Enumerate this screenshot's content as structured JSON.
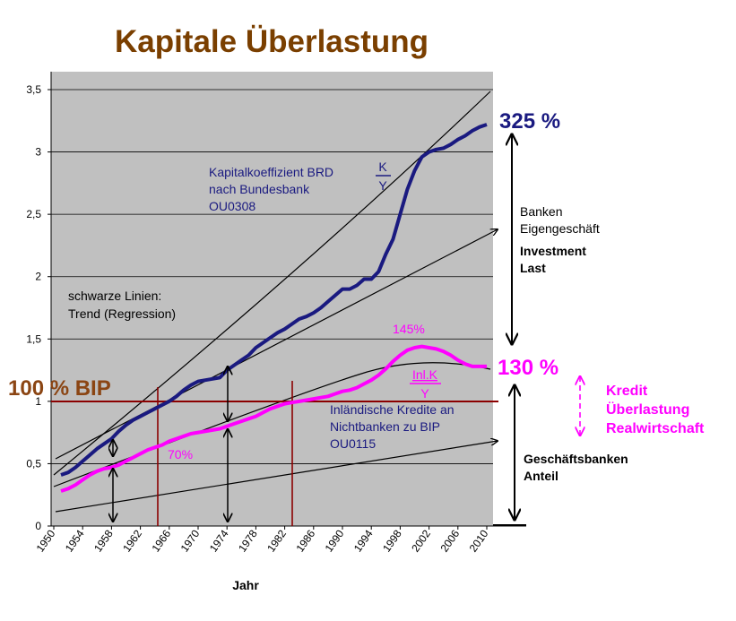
{
  "title": "Kapitale Überlastung",
  "xlabel": "Jahr",
  "colors": {
    "plot_bg": "#c0c0c0",
    "title": "#7a3f00",
    "navy": "#1a1a80",
    "magenta": "#ff00ff",
    "darkred": "#8b0000",
    "trend": "#000000"
  },
  "labels": {
    "k_series_line1": "Kapitalkoeffizient BRD",
    "k_series_line2": "nach Bundesbank",
    "k_series_line3": "OU0308",
    "k_frac_num": "K",
    "k_frac_den": "Y",
    "trend_line1": "schwarze Linien:",
    "trend_line2": "Trend (Regression)",
    "credit_line1": "Inländische Kredite an",
    "credit_line2": "Nichtbanken zu BIP",
    "credit_line3": "OU0115",
    "credit_frac_num": "Inl.K",
    "credit_frac_den": "Y",
    "pct_70": "70%",
    "pct_145": "145%",
    "pct_325": "325 %",
    "pct_130": "130 %",
    "bip_100": "100 % BIP",
    "banken_1": "Banken",
    "banken_2": "Eigengeschäft",
    "investment_1": "Investment",
    "investment_2": "Last",
    "geschaeft_1": "Geschäftsbanken",
    "geschaeft_2": "Anteil",
    "kredit_1": "Kredit",
    "kredit_2": "Überlastung",
    "kredit_3": "Realwirtschaft"
  },
  "chart_data": {
    "type": "line",
    "title": "Kapitale Überlastung",
    "xlabel": "Jahr",
    "ylabel": "",
    "xlim": [
      1950,
      2010
    ],
    "ylim": [
      0,
      3.5
    ],
    "grid": true,
    "y_ticks": [
      0,
      0.5,
      1,
      1.5,
      2,
      2.5,
      3,
      3.5
    ],
    "y_tick_labels": [
      "0",
      "0,5",
      "1",
      "1,5",
      "2",
      "2,5",
      "3",
      "3,5"
    ],
    "x_ticks": [
      1950,
      1954,
      1958,
      1962,
      1966,
      1970,
      1974,
      1978,
      1982,
      1986,
      1990,
      1994,
      1998,
      2002,
      2006,
      2010
    ],
    "x_tick_labels": [
      "1950",
      "1954",
      "1958",
      "1962",
      "1966",
      "1970",
      "1974",
      "1978",
      "1982",
      "1986",
      "1990",
      "1994",
      "1998",
      "2002",
      "2006",
      "2010"
    ],
    "series": [
      {
        "name": "Kapitalkoeffizient BRD nach Bundesbank OU0308",
        "color": "#1a1a80",
        "x": [
          1951,
          1952,
          1953,
          1954,
          1955,
          1956,
          1957,
          1958,
          1959,
          1960,
          1961,
          1962,
          1963,
          1964,
          1965,
          1966,
          1967,
          1968,
          1969,
          1970,
          1971,
          1972,
          1973,
          1974,
          1975,
          1976,
          1977,
          1978,
          1979,
          1980,
          1981,
          1982,
          1983,
          1984,
          1985,
          1986,
          1987,
          1988,
          1989,
          1990,
          1991,
          1992,
          1993,
          1994,
          1995,
          1996,
          1997,
          1998,
          1999,
          2000,
          2001,
          2002,
          2003,
          2004,
          2005,
          2006,
          2007,
          2008,
          2009,
          2010
        ],
        "y": [
          0.41,
          0.43,
          0.47,
          0.52,
          0.57,
          0.62,
          0.66,
          0.7,
          0.76,
          0.81,
          0.85,
          0.88,
          0.91,
          0.94,
          0.97,
          1.0,
          1.04,
          1.09,
          1.13,
          1.16,
          1.17,
          1.18,
          1.19,
          1.25,
          1.29,
          1.33,
          1.37,
          1.43,
          1.47,
          1.51,
          1.55,
          1.58,
          1.62,
          1.66,
          1.68,
          1.71,
          1.75,
          1.8,
          1.85,
          1.9,
          1.9,
          1.93,
          1.98,
          1.98,
          2.04,
          2.18,
          2.3,
          2.5,
          2.7,
          2.85,
          2.96,
          3.0,
          3.02,
          3.03,
          3.06,
          3.1,
          3.13,
          3.17,
          3.2,
          3.22
        ]
      },
      {
        "name": "Inländische Kredite an Nichtbanken zu BIP OU0115",
        "color": "#ff00ff",
        "x": [
          1951,
          1952,
          1953,
          1954,
          1955,
          1956,
          1957,
          1958,
          1959,
          1960,
          1961,
          1962,
          1963,
          1964,
          1965,
          1966,
          1967,
          1968,
          1969,
          1970,
          1971,
          1972,
          1973,
          1974,
          1975,
          1976,
          1977,
          1978,
          1979,
          1980,
          1981,
          1982,
          1983,
          1984,
          1985,
          1986,
          1987,
          1988,
          1989,
          1990,
          1991,
          1992,
          1993,
          1994,
          1995,
          1996,
          1997,
          1998,
          1999,
          2000,
          2001,
          2002,
          2003,
          2004,
          2005,
          2006,
          2007,
          2008,
          2009,
          2010
        ],
        "y": [
          0.28,
          0.3,
          0.33,
          0.37,
          0.41,
          0.44,
          0.46,
          0.47,
          0.49,
          0.52,
          0.55,
          0.58,
          0.61,
          0.63,
          0.65,
          0.68,
          0.7,
          0.72,
          0.74,
          0.75,
          0.76,
          0.77,
          0.78,
          0.8,
          0.82,
          0.84,
          0.86,
          0.88,
          0.91,
          0.94,
          0.96,
          0.98,
          0.99,
          1.0,
          1.01,
          1.02,
          1.03,
          1.04,
          1.06,
          1.08,
          1.09,
          1.11,
          1.14,
          1.17,
          1.21,
          1.26,
          1.32,
          1.37,
          1.41,
          1.43,
          1.44,
          1.43,
          1.42,
          1.4,
          1.37,
          1.33,
          1.3,
          1.28,
          1.28,
          1.28
        ]
      }
    ]
  }
}
